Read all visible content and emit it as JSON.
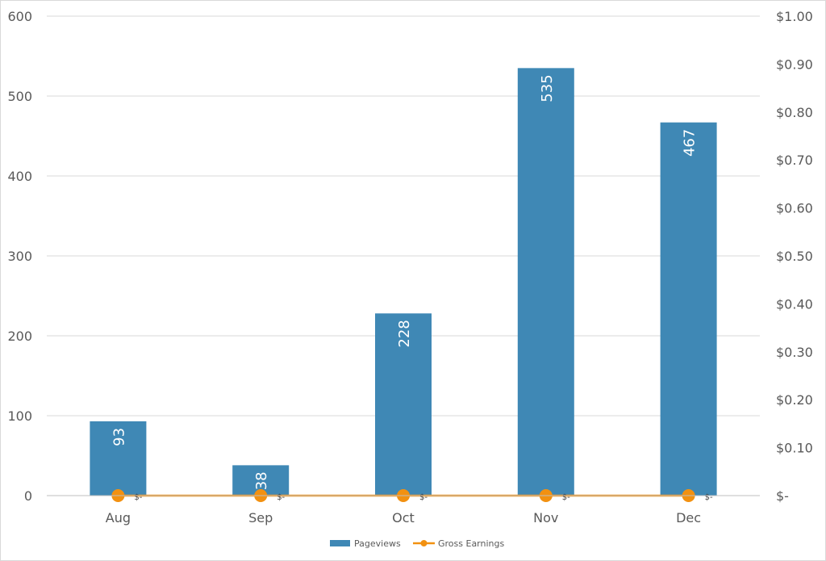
{
  "chart_data": {
    "type": "bar",
    "title": "",
    "categories": [
      "Aug",
      "Sep",
      "Oct",
      "Nov",
      "Dec"
    ],
    "series": [
      {
        "name": "Pageviews",
        "type": "bar",
        "axis": "left",
        "values": [
          93,
          38,
          228,
          535,
          467
        ],
        "data_labels": [
          "93",
          "38",
          "228",
          "535",
          "467"
        ],
        "color": "#3F88B5"
      },
      {
        "name": "Gross Earnings",
        "type": "line",
        "axis": "right",
        "values": [
          0,
          0,
          0,
          0,
          0
        ],
        "data_labels": [
          "$-",
          "$-",
          "$-",
          "$-",
          "$-"
        ],
        "color": "#F29111"
      }
    ],
    "y_left": {
      "ylim": [
        0,
        600
      ],
      "ticks": [
        0,
        100,
        200,
        300,
        400,
        500,
        600
      ],
      "tick_labels": [
        "0",
        "100",
        "200",
        "300",
        "400",
        "500",
        "600"
      ]
    },
    "y_right": {
      "ylim": [
        0,
        1.0
      ],
      "ticks": [
        0,
        0.1,
        0.2,
        0.3,
        0.4,
        0.5,
        0.6,
        0.7,
        0.8,
        0.9,
        1.0
      ],
      "tick_labels": [
        "$-",
        "$0.10",
        "$0.20",
        "$0.30",
        "$0.40",
        "$0.50",
        "$0.60",
        "$0.70",
        "$0.80",
        "$0.90",
        "$1.00"
      ]
    },
    "grid": true,
    "legend": {
      "position": "bottom",
      "entries": [
        "Pageviews",
        "Gross Earnings"
      ]
    }
  }
}
